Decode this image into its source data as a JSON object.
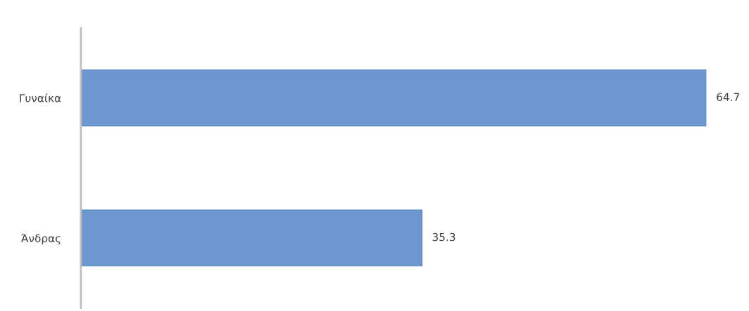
{
  "chart_data": {
    "type": "bar",
    "orientation": "horizontal",
    "categories": [
      "Γυναίκα",
      "Άνδρας"
    ],
    "values": [
      64.7,
      35.3
    ],
    "color": "#6f97cf",
    "data_labels": true,
    "grid": false,
    "legend": false
  }
}
